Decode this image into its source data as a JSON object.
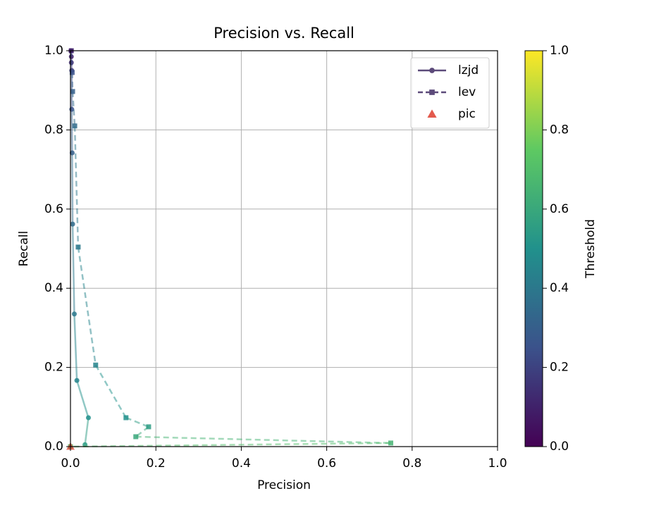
{
  "chart_data": {
    "type": "line",
    "title": "Precision vs. Recall",
    "xlabel": "Precision",
    "ylabel": "Recall",
    "xlim": [
      0,
      1
    ],
    "ylim": [
      0,
      1
    ],
    "xticks": [
      {
        "value": 0,
        "label": "0.0"
      },
      {
        "value": 0.2,
        "label": "0.2"
      },
      {
        "value": 0.4,
        "label": "0.4"
      },
      {
        "value": 0.6,
        "label": "0.6"
      },
      {
        "value": 0.8,
        "label": "0.8"
      },
      {
        "value": 1,
        "label": "1.0"
      }
    ],
    "yticks": [
      {
        "value": 0,
        "label": "0.0"
      },
      {
        "value": 0.2,
        "label": "0.2"
      },
      {
        "value": 0.4,
        "label": "0.4"
      },
      {
        "value": 0.6,
        "label": "0.6"
      },
      {
        "value": 0.8,
        "label": "0.8"
      },
      {
        "value": 1,
        "label": "1.0"
      }
    ],
    "grid": true,
    "legend": "upper right",
    "colorbar": {
      "label": "Threshold",
      "clim": [
        0,
        1
      ],
      "cmap": "viridis",
      "ticks": [
        {
          "value": 0,
          "label": "0.0"
        },
        {
          "value": 0.2,
          "label": "0.2"
        },
        {
          "value": 0.4,
          "label": "0.4"
        },
        {
          "value": 0.6,
          "label": "0.6"
        },
        {
          "value": 0.8,
          "label": "0.8"
        },
        {
          "value": 1,
          "label": "1.0"
        }
      ]
    },
    "series": [
      {
        "name": "lzjd",
        "color": "#5c4a7a",
        "linestyle": "solid",
        "marker": "circle",
        "x": [
          0.001,
          0.002,
          0.002,
          0.003,
          0.003,
          0.004,
          0.005,
          0.009,
          0.015,
          0.042,
          0.034
        ],
        "values": [
          1.0,
          0.985,
          0.97,
          0.95,
          0.852,
          0.742,
          0.562,
          0.335,
          0.167,
          0.073,
          0.005
        ],
        "thresholds": [
          0.05,
          0.1,
          0.13,
          0.17,
          0.25,
          0.3,
          0.35,
          0.4,
          0.45,
          0.5,
          0.55
        ]
      },
      {
        "name": "lev",
        "color": "#5c4a7a",
        "linestyle": "dashed",
        "marker": "square",
        "x": [
          0.002,
          0.004,
          0.005,
          0.01,
          0.018,
          0.059,
          0.13,
          0.183,
          0.153,
          0.75,
          0.0
        ],
        "values": [
          1.0,
          0.945,
          0.897,
          0.81,
          0.504,
          0.206,
          0.073,
          0.05,
          0.025,
          0.009,
          0.0
        ],
        "thresholds": [
          0.1,
          0.25,
          0.3,
          0.35,
          0.4,
          0.45,
          0.5,
          0.55,
          0.6,
          0.65,
          0.7
        ]
      },
      {
        "name": "pic",
        "color": "#e0483a",
        "linestyle": "none",
        "marker": "triangle",
        "x": [
          0.0
        ],
        "values": [
          0.0
        ]
      }
    ]
  }
}
